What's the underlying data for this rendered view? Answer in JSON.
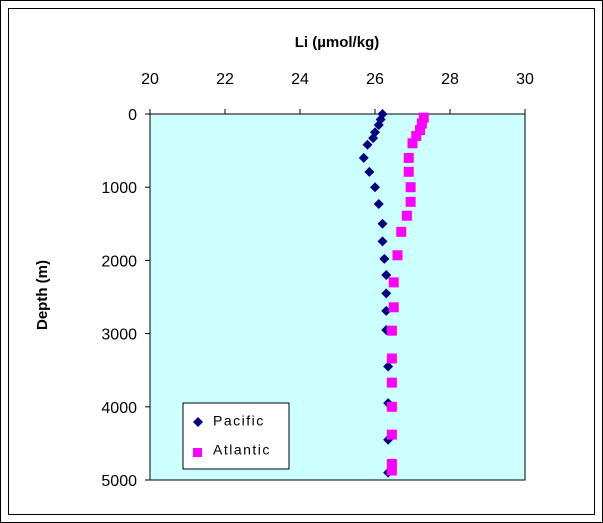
{
  "chart_data": {
    "type": "scatter",
    "title": "",
    "xlabel": "Li (µmol/kg)",
    "ylabel": "Depth (m)",
    "xlim": [
      20,
      30
    ],
    "ylim": [
      0,
      5000
    ],
    "y_reversed": true,
    "x_axis_position": "top",
    "x_ticks": [
      "20",
      "22",
      "24",
      "26",
      "28",
      "30"
    ],
    "y_ticks": [
      "0",
      "1000",
      "2000",
      "3000",
      "4000",
      "5000"
    ],
    "plot_background": "#ccffff",
    "grid": false,
    "legend_position": "bottom-left",
    "series": [
      {
        "name": "Pacific",
        "marker": "diamond",
        "color": "#000080",
        "points": [
          [
            26.2,
            0
          ],
          [
            26.15,
            75
          ],
          [
            26.1,
            150
          ],
          [
            26.0,
            250
          ],
          [
            25.95,
            330
          ],
          [
            25.8,
            420
          ],
          [
            25.7,
            600
          ],
          [
            25.85,
            790
          ],
          [
            26.0,
            1000
          ],
          [
            26.1,
            1230
          ],
          [
            26.2,
            1500
          ],
          [
            26.2,
            1740
          ],
          [
            26.25,
            1980
          ],
          [
            26.3,
            2200
          ],
          [
            26.3,
            2450
          ],
          [
            26.3,
            2690
          ],
          [
            26.3,
            2950
          ],
          [
            26.35,
            3450
          ],
          [
            26.35,
            3950
          ],
          [
            26.35,
            4450
          ],
          [
            26.35,
            4900
          ]
        ]
      },
      {
        "name": "Atlantic",
        "marker": "square",
        "color": "#ff00ff",
        "points": [
          [
            27.3,
            50
          ],
          [
            27.25,
            130
          ],
          [
            27.2,
            220
          ],
          [
            27.1,
            300
          ],
          [
            27.0,
            400
          ],
          [
            26.9,
            600
          ],
          [
            26.9,
            790
          ],
          [
            26.95,
            1000
          ],
          [
            26.95,
            1200
          ],
          [
            26.85,
            1390
          ],
          [
            26.7,
            1610
          ],
          [
            26.6,
            1930
          ],
          [
            26.5,
            2300
          ],
          [
            26.5,
            2640
          ],
          [
            26.45,
            2960
          ],
          [
            26.45,
            3340
          ],
          [
            26.45,
            3670
          ],
          [
            26.45,
            4000
          ],
          [
            26.45,
            4380
          ],
          [
            26.45,
            4780
          ],
          [
            26.45,
            4870
          ]
        ]
      }
    ]
  }
}
